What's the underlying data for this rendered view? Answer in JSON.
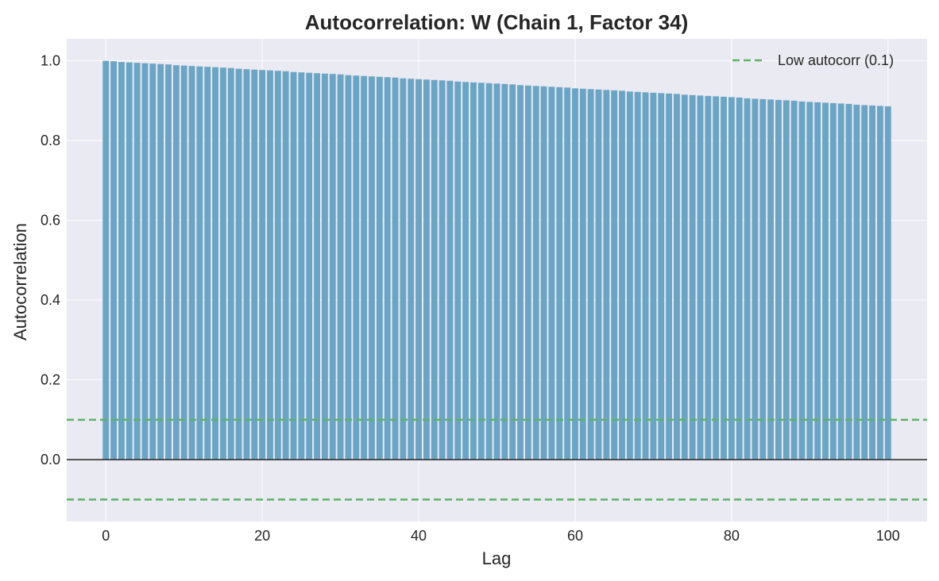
{
  "chart_data": {
    "type": "bar",
    "title": "Autocorrelation: W (Chain 1, Factor 34)",
    "xlabel": "Lag",
    "ylabel": "Autocorrelation",
    "xlim": [
      -5,
      105
    ],
    "ylim": [
      -0.155,
      1.055
    ],
    "x_ticks": [
      0,
      20,
      40,
      60,
      80,
      100
    ],
    "y_ticks": [
      0.0,
      0.2,
      0.4,
      0.6,
      0.8,
      1.0
    ],
    "x_tick_labels": [
      "0",
      "20",
      "40",
      "60",
      "80",
      "100"
    ],
    "y_tick_labels": [
      "0.0",
      "0.2",
      "0.4",
      "0.6",
      "0.8",
      "1.0"
    ],
    "lag_start": 0,
    "lag_end": 100,
    "values": [
      1.0,
      0.999,
      0.997,
      0.996,
      0.995,
      0.994,
      0.993,
      0.992,
      0.991,
      0.989,
      0.988,
      0.987,
      0.986,
      0.985,
      0.984,
      0.983,
      0.982,
      0.98,
      0.979,
      0.978,
      0.977,
      0.976,
      0.975,
      0.974,
      0.972,
      0.971,
      0.97,
      0.969,
      0.968,
      0.967,
      0.966,
      0.964,
      0.963,
      0.962,
      0.961,
      0.96,
      0.959,
      0.958,
      0.956,
      0.955,
      0.954,
      0.953,
      0.952,
      0.951,
      0.95,
      0.948,
      0.947,
      0.946,
      0.945,
      0.944,
      0.943,
      0.942,
      0.941,
      0.939,
      0.938,
      0.937,
      0.936,
      0.935,
      0.934,
      0.933,
      0.931,
      0.93,
      0.929,
      0.928,
      0.927,
      0.926,
      0.925,
      0.923,
      0.922,
      0.921,
      0.92,
      0.919,
      0.918,
      0.917,
      0.915,
      0.914,
      0.913,
      0.912,
      0.911,
      0.91,
      0.909,
      0.908,
      0.906,
      0.905,
      0.904,
      0.903,
      0.902,
      0.901,
      0.9,
      0.898,
      0.897,
      0.896,
      0.895,
      0.894,
      0.893,
      0.892,
      0.89,
      0.889,
      0.888,
      0.887,
      0.886
    ],
    "threshold": 0.1,
    "threshold_lines": [
      0.1,
      -0.1
    ],
    "zero_line": 0.0,
    "legend": {
      "entries": [
        {
          "label": "Low autocorr (0.1)",
          "style": "dashed"
        }
      ],
      "placement": "top-right"
    },
    "grid": true,
    "colors": {
      "bar": "#6ba5c5",
      "threshold": "#5cb36a",
      "zero_line": "#262626",
      "plot_background": "#eaeaf2",
      "grid": "#ffffff"
    }
  }
}
